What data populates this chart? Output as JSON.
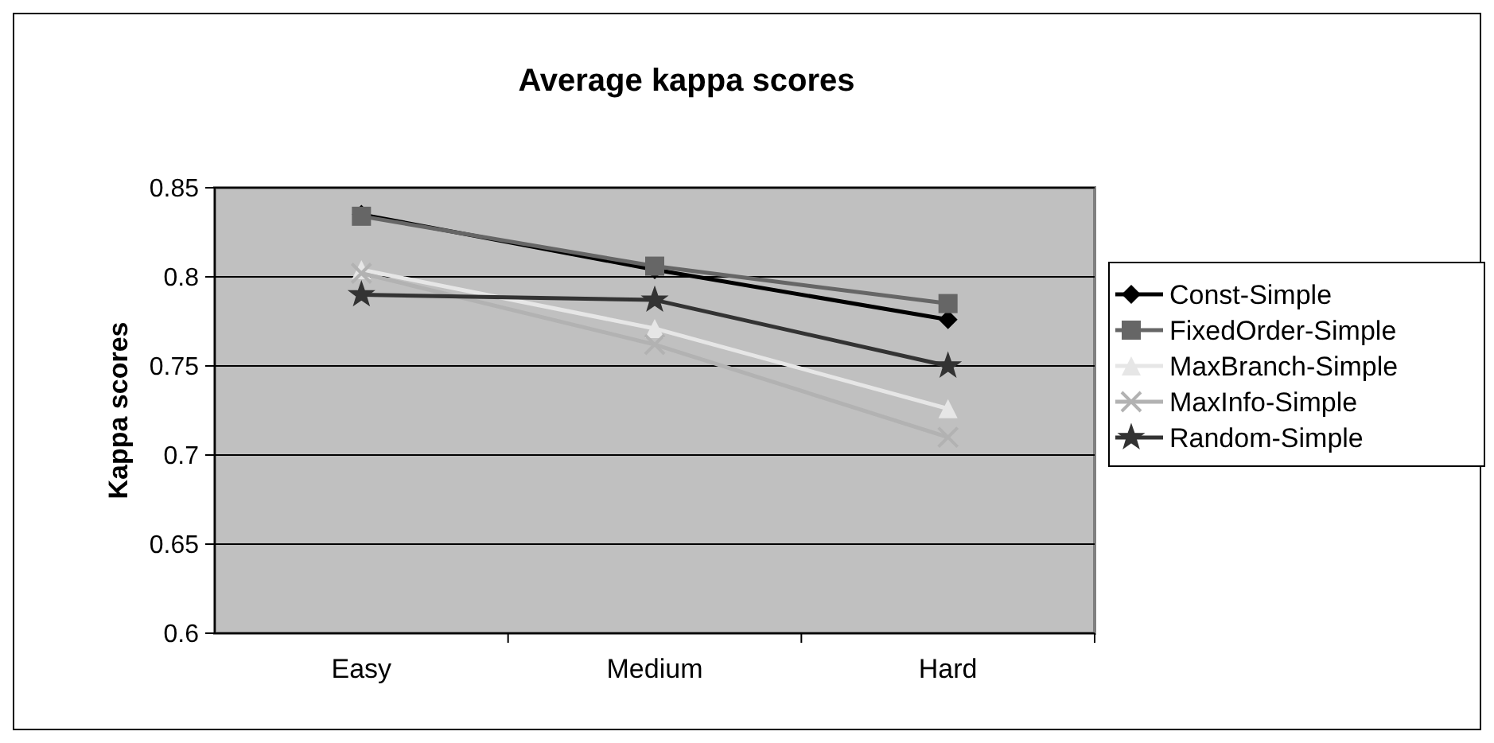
{
  "chart_data": {
    "type": "line",
    "title": "Average kappa scores",
    "ylabel": "Kappa scores",
    "categories": [
      "Easy",
      "Medium",
      "Hard"
    ],
    "series": [
      {
        "name": "Const-Simple",
        "color": "#000000",
        "marker": "diamond",
        "values": [
          0.835,
          0.804,
          0.776
        ]
      },
      {
        "name": "FixedOrder-Simple",
        "color": "#666666",
        "marker": "square",
        "values": [
          0.834,
          0.806,
          0.785
        ]
      },
      {
        "name": "MaxBranch-Simple",
        "color": "#e6e6e6",
        "marker": "triangle",
        "values": [
          0.804,
          0.771,
          0.726
        ]
      },
      {
        "name": "MaxInfo-Simple",
        "color": "#b2b2b2",
        "marker": "cross",
        "values": [
          0.802,
          0.762,
          0.71
        ]
      },
      {
        "name": "Random-Simple",
        "color": "#333333",
        "marker": "star",
        "values": [
          0.79,
          0.787,
          0.75
        ]
      }
    ],
    "ylim": [
      0.6,
      0.85
    ],
    "yticks": [
      0.6,
      0.65,
      0.7,
      0.75,
      0.8,
      0.85
    ],
    "grid": "y",
    "legend": "right"
  }
}
